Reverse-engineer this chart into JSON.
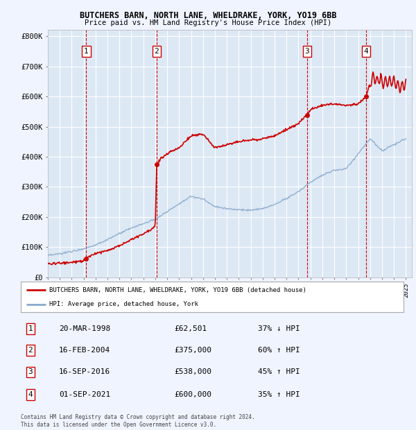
{
  "title1": "BUTCHERS BARN, NORTH LANE, WHELDRAKE, YORK, YO19 6BB",
  "title2": "Price paid vs. HM Land Registry's House Price Index (HPI)",
  "bg_color": "#f0f4ff",
  "plot_bg": "#dde8f5",
  "sale_dates": [
    1998.22,
    2004.12,
    2016.71,
    2021.67
  ],
  "sale_prices": [
    62501,
    375000,
    538000,
    600000
  ],
  "sale_labels": [
    "1",
    "2",
    "3",
    "4"
  ],
  "legend_line1": "BUTCHERS BARN, NORTH LANE, WHELDRAKE, YORK, YO19 6BB (detached house)",
  "legend_line2": "HPI: Average price, detached house, York",
  "table_data": [
    [
      "1",
      "20-MAR-1998",
      "£62,501",
      "37% ↓ HPI"
    ],
    [
      "2",
      "16-FEB-2004",
      "£375,000",
      "60% ↑ HPI"
    ],
    [
      "3",
      "16-SEP-2016",
      "£538,000",
      "45% ↑ HPI"
    ],
    [
      "4",
      "01-SEP-2021",
      "£600,000",
      "35% ↑ HPI"
    ]
  ],
  "footer": "Contains HM Land Registry data © Crown copyright and database right 2024.\nThis data is licensed under the Open Government Licence v3.0.",
  "red_color": "#cc0000",
  "blue_color": "#88aacc",
  "xmin": 1995,
  "xmax": 2025.5,
  "ymin": 0,
  "ymax": 820000,
  "hpi_anchors_x": [
    1995,
    1996,
    1997,
    1998,
    1999,
    2000,
    2001,
    2002,
    2003,
    2004,
    2005,
    2006,
    2007,
    2008,
    2009,
    2010,
    2011,
    2012,
    2013,
    2014,
    2015,
    2016,
    2017,
    2018,
    2019,
    2020,
    2021,
    2022,
    2023,
    2024,
    2025
  ],
  "hpi_anchors_y": [
    72000,
    78000,
    86000,
    95000,
    108000,
    125000,
    145000,
    163000,
    178000,
    193000,
    218000,
    245000,
    268000,
    260000,
    235000,
    228000,
    225000,
    222000,
    228000,
    242000,
    262000,
    285000,
    315000,
    340000,
    355000,
    360000,
    410000,
    460000,
    420000,
    440000,
    460000
  ],
  "prop_anchors_x": [
    1995,
    1997,
    1998.0,
    1998.22,
    1998.5,
    1999,
    2000,
    2001,
    2002,
    2003,
    2004.0,
    2004.12,
    2004.5,
    2005,
    2006,
    2007,
    2008,
    2009,
    2010,
    2011,
    2012,
    2013,
    2014,
    2015,
    2016,
    2016.71,
    2017,
    2018,
    2019,
    2020,
    2021,
    2021.67,
    2022,
    2022.3,
    2022.6,
    2022.9,
    2023,
    2023.5,
    2024,
    2024.5,
    2025
  ],
  "prop_anchors_y": [
    45000,
    50000,
    55000,
    62501,
    70000,
    80000,
    90000,
    105000,
    125000,
    145000,
    168000,
    375000,
    395000,
    410000,
    430000,
    470000,
    475000,
    430000,
    440000,
    450000,
    455000,
    460000,
    470000,
    490000,
    510000,
    538000,
    555000,
    570000,
    575000,
    570000,
    575000,
    600000,
    640000,
    665000,
    650000,
    660000,
    645000,
    650000,
    650000,
    630000,
    640000
  ]
}
